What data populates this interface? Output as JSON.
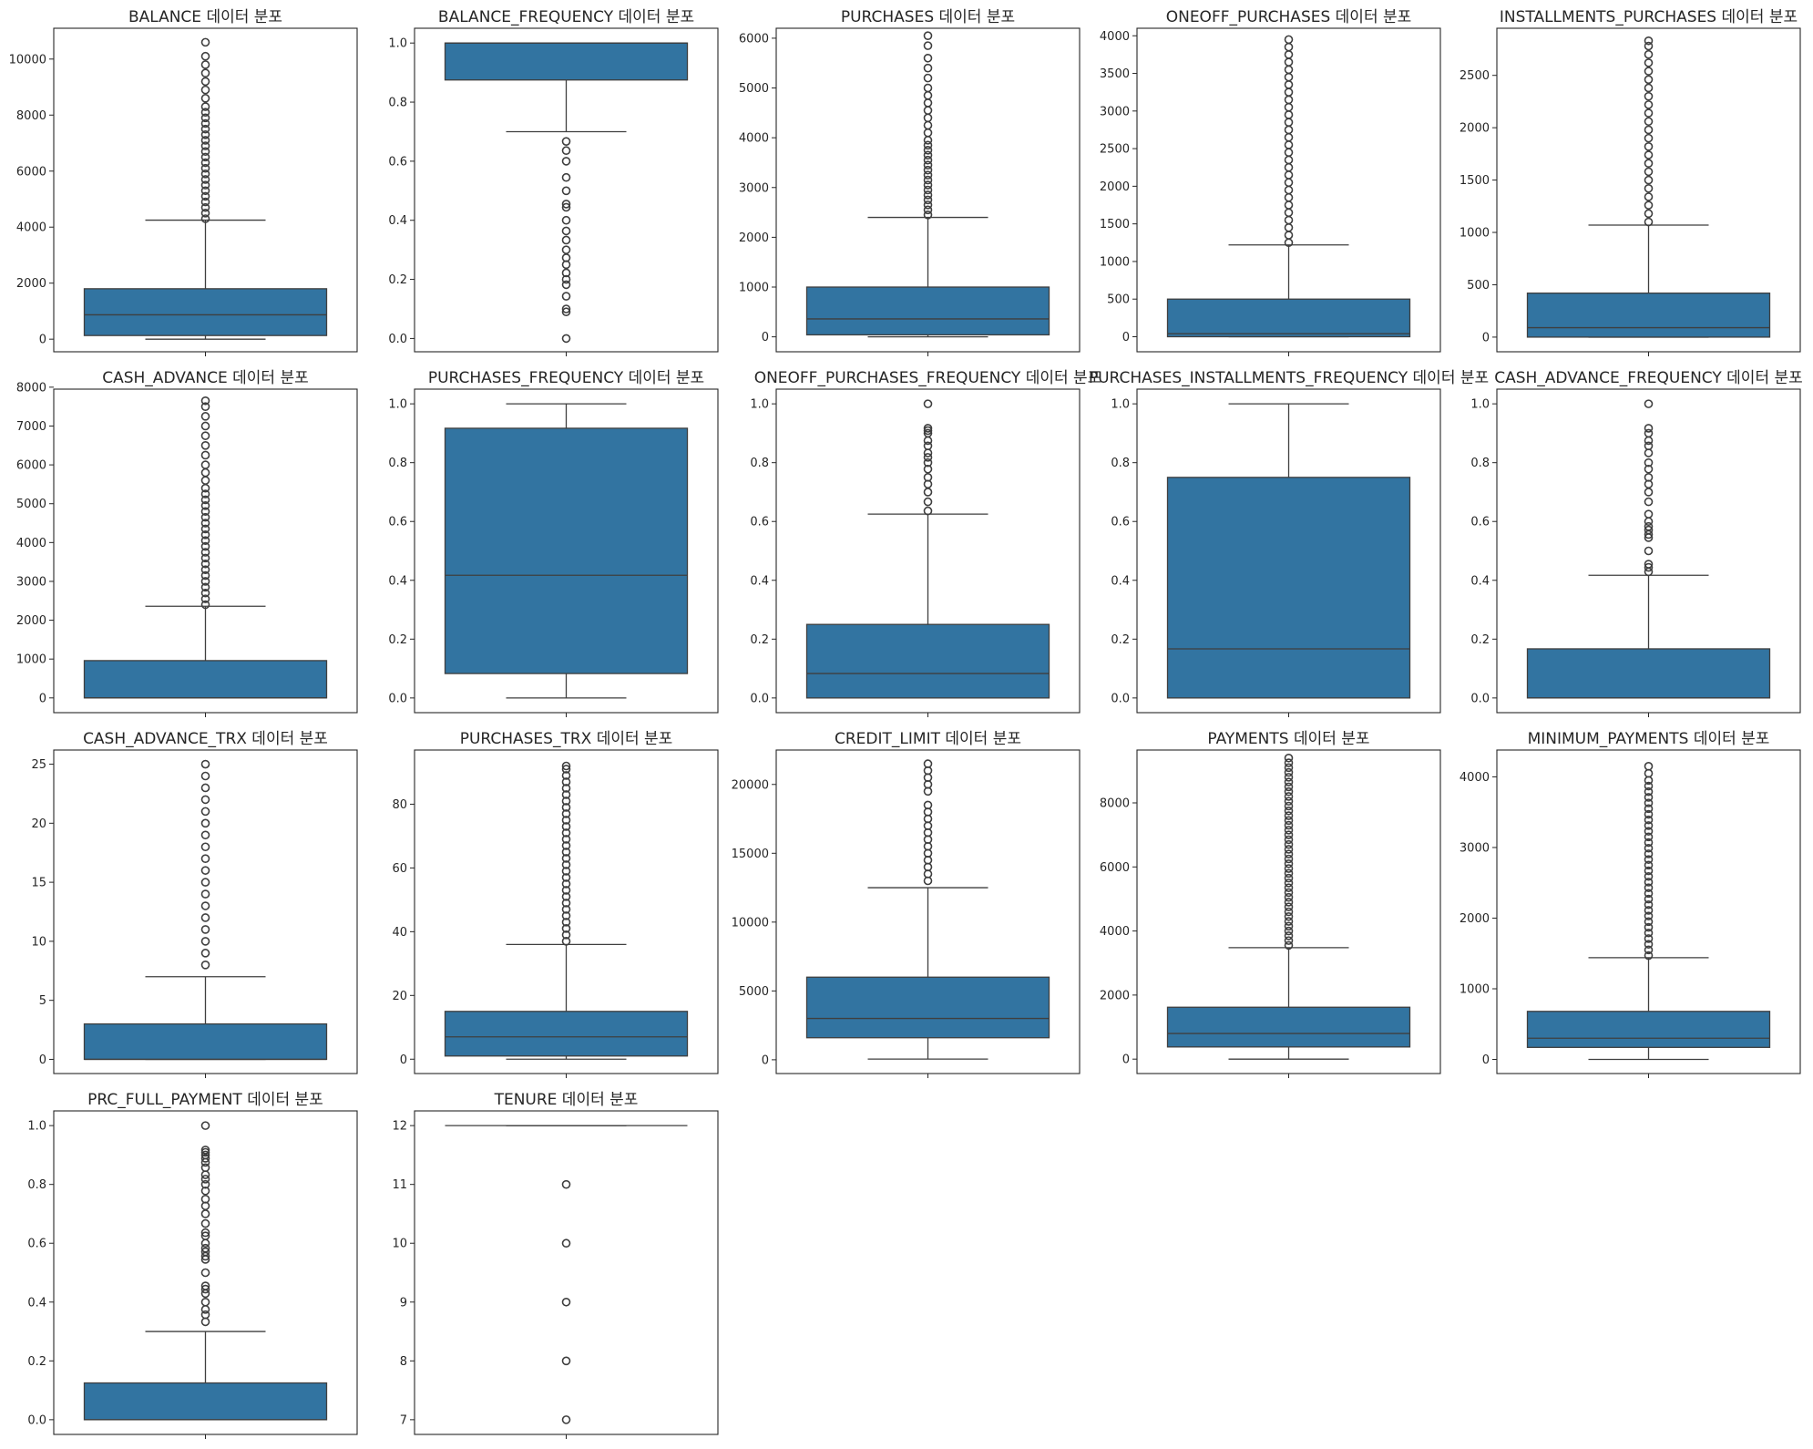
{
  "colors": {
    "box_fill": "#3274a1",
    "line": "#3f3f3f",
    "outlier": "#3f3f3f",
    "axes": "#262626"
  },
  "chart_data": [
    {
      "type": "boxplot",
      "title": "BALANCE 데이터 분포",
      "ylim": [
        -450,
        11100
      ],
      "yticks": [
        0,
        2000,
        4000,
        6000,
        8000,
        10000
      ],
      "ytick_labels": [
        "0",
        "2000",
        "4000",
        "6000",
        "8000",
        "10000"
      ],
      "whisker_low": 0,
      "q1": 130,
      "median": 870,
      "q3": 1800,
      "whisker_high": 4250,
      "outliers": [
        4300,
        4500,
        4700,
        4900,
        5100,
        5300,
        5500,
        5700,
        5900,
        6100,
        6300,
        6500,
        6700,
        6900,
        7100,
        7300,
        7500,
        7700,
        7900,
        8100,
        8300,
        8600,
        8900,
        9200,
        9500,
        9800,
        10100,
        10600
      ]
    },
    {
      "type": "boxplot",
      "title": "BALANCE_FREQUENCY 데이터 분포",
      "ylim": [
        -0.045,
        1.05
      ],
      "yticks": [
        0,
        0.2,
        0.4,
        0.6,
        0.8,
        1.0
      ],
      "ytick_labels": [
        "0.0",
        "0.2",
        "0.4",
        "0.6",
        "0.8",
        "1.0"
      ],
      "whisker_low": 0.7,
      "q1": 0.875,
      "median": 1.0,
      "q3": 1.0,
      "whisker_high": 1.0,
      "outliers": [
        0.667,
        0.636,
        0.6,
        0.545,
        0.5,
        0.455,
        0.444,
        0.4,
        0.364,
        0.333,
        0.3,
        0.273,
        0.25,
        0.222,
        0.2,
        0.182,
        0.143,
        0.1,
        0.09,
        0.0
      ]
    },
    {
      "type": "boxplot",
      "title": "PURCHASES 데이터 분포",
      "ylim": [
        -300,
        6200
      ],
      "yticks": [
        0,
        1000,
        2000,
        3000,
        4000,
        5000,
        6000
      ],
      "ytick_labels": [
        "0",
        "1000",
        "2000",
        "3000",
        "4000",
        "5000",
        "6000"
      ],
      "whisker_low": 0,
      "q1": 40,
      "median": 360,
      "q3": 1000,
      "whisker_high": 2400,
      "outliers": [
        2450,
        2550,
        2650,
        2750,
        2850,
        2950,
        3050,
        3150,
        3250,
        3350,
        3450,
        3550,
        3650,
        3750,
        3850,
        3950,
        4100,
        4250,
        4400,
        4550,
        4700,
        4850,
        5000,
        5200,
        5400,
        5600,
        5850,
        6050
      ]
    },
    {
      "type": "boxplot",
      "title": "ONEOFF_PURCHASES 데이터 분포",
      "ylim": [
        -200,
        4100
      ],
      "yticks": [
        0,
        500,
        1000,
        1500,
        2000,
        2500,
        3000,
        3500,
        4000
      ],
      "ytick_labels": [
        "0",
        "500",
        "1000",
        "1500",
        "2000",
        "2500",
        "3000",
        "3500",
        "4000"
      ],
      "whisker_low": 0,
      "q1": 0,
      "median": 40,
      "q3": 500,
      "whisker_high": 1220,
      "outliers": [
        1250,
        1350,
        1450,
        1550,
        1650,
        1750,
        1850,
        1950,
        2050,
        2150,
        2250,
        2350,
        2450,
        2550,
        2650,
        2750,
        2850,
        2950,
        3050,
        3150,
        3250,
        3350,
        3450,
        3550,
        3650,
        3750,
        3850,
        3950
      ]
    },
    {
      "type": "boxplot",
      "title": "INSTALLMENTS_PURCHASES 데이터 분포",
      "ylim": [
        -140,
        2950
      ],
      "yticks": [
        0,
        500,
        1000,
        1500,
        2000,
        2500
      ],
      "ytick_labels": [
        "0",
        "500",
        "1000",
        "1500",
        "2000",
        "2500"
      ],
      "whisker_low": 0,
      "q1": 0,
      "median": 90,
      "q3": 420,
      "whisker_high": 1070,
      "outliers": [
        1100,
        1180,
        1260,
        1340,
        1420,
        1500,
        1580,
        1660,
        1740,
        1820,
        1900,
        1980,
        2060,
        2140,
        2220,
        2300,
        2380,
        2460,
        2540,
        2620,
        2700,
        2780,
        2830
      ]
    },
    {
      "type": "boxplot",
      "title": "CASH_ADVANCE 데이터 분포",
      "ylim": [
        -380,
        7950
      ],
      "yticks": [
        0,
        1000,
        2000,
        3000,
        4000,
        5000,
        6000,
        7000,
        8000
      ],
      "ytick_labels": [
        "0",
        "1000",
        "2000",
        "3000",
        "4000",
        "5000",
        "6000",
        "7000",
        "8000"
      ],
      "whisker_low": 0,
      "q1": 0,
      "median": 0,
      "q3": 960,
      "whisker_high": 2360,
      "outliers": [
        2400,
        2550,
        2700,
        2850,
        3000,
        3150,
        3300,
        3450,
        3600,
        3750,
        3900,
        4050,
        4200,
        4350,
        4500,
        4650,
        4800,
        4950,
        5100,
        5250,
        5400,
        5600,
        5800,
        6000,
        6250,
        6500,
        6750,
        7000,
        7250,
        7500,
        7650
      ]
    },
    {
      "type": "boxplot",
      "title": "PURCHASES_FREQUENCY 데이터 분포",
      "ylim": [
        -0.05,
        1.05
      ],
      "yticks": [
        0,
        0.2,
        0.4,
        0.6,
        0.8,
        1.0
      ],
      "ytick_labels": [
        "0.0",
        "0.2",
        "0.4",
        "0.6",
        "0.8",
        "1.0"
      ],
      "whisker_low": 0.0,
      "q1": 0.083,
      "median": 0.417,
      "q3": 0.917,
      "whisker_high": 1.0,
      "outliers": []
    },
    {
      "type": "boxplot",
      "title": "ONEOFF_PURCHASES_FREQUENCY 데이터 분포",
      "ylim": [
        -0.05,
        1.05
      ],
      "yticks": [
        0,
        0.2,
        0.4,
        0.6,
        0.8,
        1.0
      ],
      "ytick_labels": [
        "0.0",
        "0.2",
        "0.4",
        "0.6",
        "0.8",
        "1.0"
      ],
      "whisker_low": 0.0,
      "q1": 0.0,
      "median": 0.083,
      "q3": 0.25,
      "whisker_high": 0.625,
      "outliers": [
        0.636,
        0.667,
        0.7,
        0.727,
        0.75,
        0.778,
        0.8,
        0.818,
        0.833,
        0.857,
        0.875,
        0.9,
        0.909,
        0.917,
        1.0
      ]
    },
    {
      "type": "boxplot",
      "title": "PURCHASES_INSTALLMENTS_FREQUENCY 데이터 분포",
      "ylim": [
        -0.05,
        1.05
      ],
      "yticks": [
        0,
        0.2,
        0.4,
        0.6,
        0.8,
        1.0
      ],
      "ytick_labels": [
        "0.0",
        "0.2",
        "0.4",
        "0.6",
        "0.8",
        "1.0"
      ],
      "whisker_low": 0.0,
      "q1": 0.0,
      "median": 0.167,
      "q3": 0.75,
      "whisker_high": 1.0,
      "outliers": []
    },
    {
      "type": "boxplot",
      "title": "CASH_ADVANCE_FREQUENCY 데이터 분포",
      "ylim": [
        -0.05,
        1.05
      ],
      "yticks": [
        0,
        0.2,
        0.4,
        0.6,
        0.8,
        1.0
      ],
      "ytick_labels": [
        "0.0",
        "0.2",
        "0.4",
        "0.6",
        "0.8",
        "1.0"
      ],
      "whisker_low": 0.0,
      "q1": 0.0,
      "median": 0.0,
      "q3": 0.167,
      "whisker_high": 0.417,
      "outliers": [
        0.429,
        0.444,
        0.455,
        0.5,
        0.545,
        0.556,
        0.571,
        0.583,
        0.6,
        0.625,
        0.667,
        0.7,
        0.727,
        0.75,
        0.778,
        0.8,
        0.833,
        0.857,
        0.875,
        0.9,
        0.917,
        1.0
      ]
    },
    {
      "type": "boxplot",
      "title": "CASH_ADVANCE_TRX 데이터 분포",
      "ylim": [
        -1.2,
        26.2
      ],
      "yticks": [
        0,
        5,
        10,
        15,
        20,
        25
      ],
      "ytick_labels": [
        "0",
        "5",
        "10",
        "15",
        "20",
        "25"
      ],
      "whisker_low": 0,
      "q1": 0,
      "median": 0,
      "q3": 3,
      "whisker_high": 7,
      "outliers": [
        8,
        9,
        10,
        11,
        12,
        13,
        14,
        15,
        16,
        17,
        18,
        19,
        20,
        21,
        22,
        23,
        24,
        25
      ]
    },
    {
      "type": "boxplot",
      "title": "PURCHASES_TRX 데이터 분포",
      "ylim": [
        -4.5,
        97
      ],
      "yticks": [
        0,
        20,
        40,
        60,
        80
      ],
      "ytick_labels": [
        "0",
        "20",
        "40",
        "60",
        "80"
      ],
      "whisker_low": 0,
      "q1": 1,
      "median": 7,
      "q3": 15,
      "whisker_high": 36,
      "outliers": [
        37,
        39,
        41,
        43,
        45,
        47,
        49,
        51,
        53,
        55,
        57,
        59,
        61,
        63,
        65,
        67,
        69,
        71,
        73,
        75,
        77,
        79,
        81,
        83,
        85,
        87,
        89,
        91,
        92
      ]
    },
    {
      "type": "boxplot",
      "title": "CREDIT_LIMIT 데이터 분포",
      "ylim": [
        -1000,
        22500
      ],
      "yticks": [
        0,
        5000,
        10000,
        15000,
        20000
      ],
      "ytick_labels": [
        "0",
        "5000",
        "10000",
        "15000",
        "20000"
      ],
      "whisker_low": 50,
      "q1": 1600,
      "median": 3000,
      "q3": 6000,
      "whisker_high": 12500,
      "outliers": [
        13000,
        13500,
        14000,
        14500,
        15000,
        15500,
        16000,
        16500,
        17000,
        17500,
        18000,
        18500,
        19500,
        20000,
        20500,
        21000,
        21500
      ]
    },
    {
      "type": "boxplot",
      "title": "PAYMENTS 데이터 분포",
      "ylim": [
        -450,
        9650
      ],
      "yticks": [
        0,
        2000,
        4000,
        6000,
        8000
      ],
      "ytick_labels": [
        "0",
        "2000",
        "4000",
        "6000",
        "8000"
      ],
      "whisker_low": 0,
      "q1": 380,
      "median": 800,
      "q3": 1620,
      "whisker_high": 3480,
      "outliers": [
        3550,
        3700,
        3850,
        4000,
        4150,
        4300,
        4450,
        4600,
        4750,
        4900,
        5050,
        5200,
        5350,
        5500,
        5650,
        5800,
        5950,
        6100,
        6250,
        6400,
        6550,
        6700,
        6850,
        7000,
        7150,
        7300,
        7450,
        7600,
        7750,
        7900,
        8050,
        8200,
        8350,
        8500,
        8650,
        8800,
        8950,
        9100,
        9250,
        9400
      ]
    },
    {
      "type": "boxplot",
      "title": "MINIMUM_PAYMENTS 데이터 분포",
      "ylim": [
        -200,
        4380
      ],
      "yticks": [
        0,
        1000,
        2000,
        3000,
        4000
      ],
      "ytick_labels": [
        "0",
        "1000",
        "2000",
        "3000",
        "4000"
      ],
      "whisker_low": 0,
      "q1": 170,
      "median": 300,
      "q3": 680,
      "whisker_high": 1440,
      "outliers": [
        1470,
        1550,
        1630,
        1710,
        1790,
        1870,
        1950,
        2030,
        2110,
        2190,
        2270,
        2350,
        2430,
        2510,
        2590,
        2670,
        2750,
        2830,
        2910,
        2990,
        3070,
        3150,
        3230,
        3310,
        3390,
        3470,
        3550,
        3630,
        3710,
        3790,
        3870,
        3950,
        4050,
        4150
      ]
    },
    {
      "type": "boxplot",
      "title": "PRC_FULL_PAYMENT 데이터 분포",
      "ylim": [
        -0.05,
        1.05
      ],
      "yticks": [
        0,
        0.2,
        0.4,
        0.6,
        0.8,
        1.0
      ],
      "ytick_labels": [
        "0.0",
        "0.2",
        "0.4",
        "0.6",
        "0.8",
        "1.0"
      ],
      "whisker_low": 0.0,
      "q1": 0.0,
      "median": 0.0,
      "q3": 0.125,
      "whisker_high": 0.3,
      "outliers": [
        0.333,
        0.357,
        0.375,
        0.4,
        0.429,
        0.444,
        0.455,
        0.5,
        0.545,
        0.556,
        0.571,
        0.583,
        0.6,
        0.625,
        0.636,
        0.667,
        0.7,
        0.727,
        0.75,
        0.778,
        0.8,
        0.818,
        0.833,
        0.857,
        0.875,
        0.889,
        0.9,
        0.909,
        0.917,
        1.0
      ]
    },
    {
      "type": "boxplot",
      "title": "TENURE 데이터 분포",
      "ylim": [
        6.75,
        12.25
      ],
      "yticks": [
        7,
        8,
        9,
        10,
        11,
        12
      ],
      "ytick_labels": [
        "7",
        "8",
        "9",
        "10",
        "11",
        "12"
      ],
      "whisker_low": 12,
      "q1": 12,
      "median": 12,
      "q3": 12,
      "whisker_high": 12,
      "outliers": [
        7,
        8,
        9,
        10,
        11
      ]
    }
  ]
}
